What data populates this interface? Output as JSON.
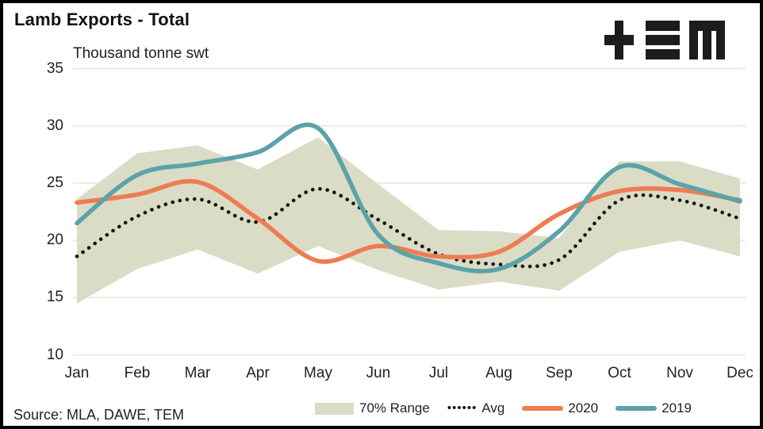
{
  "header": {
    "title": "Lamb Exports - Total",
    "unit_label": "Thousand tonne swt",
    "logo": "tem-logo"
  },
  "source": {
    "text": "Source: MLA, DAWE, TEM"
  },
  "legend": {
    "position": "bottom",
    "items": [
      {
        "label": "70% Range",
        "type": "band"
      },
      {
        "label": "Avg",
        "type": "dotted-line"
      },
      {
        "label": "2020",
        "type": "solid-line",
        "color": "#ee7c52"
      },
      {
        "label": "2019",
        "type": "solid-line",
        "color": "#5ca3a8"
      }
    ]
  },
  "chart_data": {
    "type": "line",
    "title": "Lamb Exports - Total",
    "ylabel": "Thousand tonne swt",
    "xlabel": "",
    "ylim": [
      10,
      35
    ],
    "yticks": [
      35,
      30,
      25,
      20,
      15,
      10
    ],
    "grid": true,
    "legend_position": "bottom",
    "categories": [
      "Jan",
      "Feb",
      "Mar",
      "Apr",
      "May",
      "Jun",
      "Jul",
      "Aug",
      "Sep",
      "Oct",
      "Nov",
      "Dec"
    ],
    "band": {
      "name": "70% Range",
      "color": "#dbdcc6",
      "upper": [
        23.6,
        27.6,
        28.3,
        26.2,
        29.0,
        24.9,
        20.9,
        20.8,
        20.2,
        26.9,
        26.9,
        25.4
      ],
      "lower": [
        14.5,
        17.5,
        19.2,
        17.1,
        19.5,
        17.4,
        15.7,
        16.4,
        15.6,
        19.0,
        20.0,
        18.6
      ]
    },
    "series": [
      {
        "name": "Avg",
        "style": "dotted",
        "color": "#141414",
        "values": [
          18.6,
          22.1,
          23.6,
          21.6,
          24.5,
          21.8,
          18.8,
          17.9,
          18.3,
          23.5,
          23.5,
          21.9
        ]
      },
      {
        "name": "2020",
        "style": "solid",
        "color": "#ee7c52",
        "values": [
          23.3,
          24.0,
          25.1,
          21.9,
          18.2,
          19.5,
          18.6,
          19.0,
          22.3,
          24.3,
          24.4,
          23.5
        ]
      },
      {
        "name": "2019",
        "style": "solid",
        "color": "#5ca3a8",
        "values": [
          21.5,
          25.7,
          26.7,
          27.7,
          29.8,
          20.5,
          18.0,
          17.5,
          20.8,
          26.4,
          24.9,
          23.4
        ]
      }
    ],
    "colors": {
      "grid": "#f0ece0",
      "band": "#dbdcc6",
      "s2020": "#ee7c52",
      "s2019": "#5ca3a8",
      "avg": "#141414"
    }
  }
}
